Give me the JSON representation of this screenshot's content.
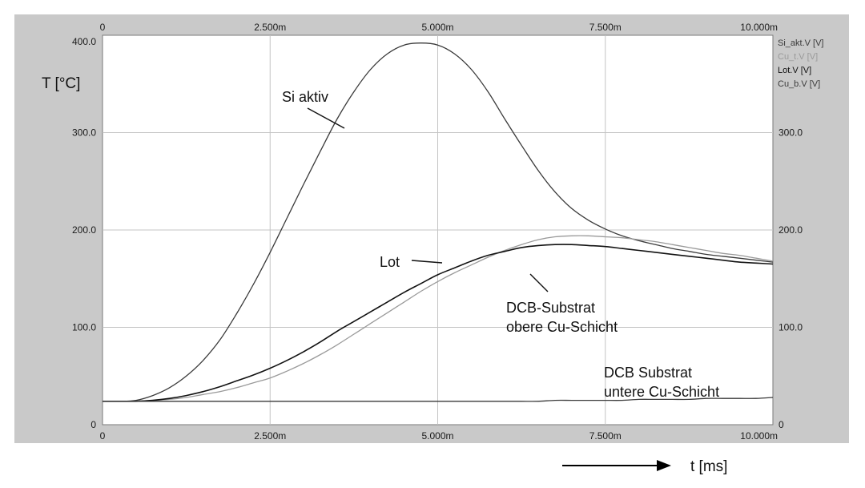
{
  "chart_data": {
    "type": "line",
    "ylabel": "T [°C]",
    "xlabel": "t [ms]",
    "xlim": [
      0,
      10
    ],
    "ylim": [
      0,
      400
    ],
    "grid": true,
    "legend_position": "right",
    "x_tick_labels": [
      "0",
      "2.500m",
      "5.000m",
      "7.500m",
      "10.000m"
    ],
    "x_ticks": [
      0,
      2.5,
      5,
      7.5,
      10
    ],
    "y_tick_labels_left": [
      "0",
      "100.0",
      "200.0",
      "300.0",
      "400.0"
    ],
    "y_tick_labels_right": [
      "0",
      "100.0",
      "200.0",
      "300.0"
    ],
    "y_ticks_left": [
      0,
      100,
      200,
      300,
      400
    ],
    "y_ticks_right": [
      0,
      100,
      200,
      300
    ],
    "legend": [
      "Si_akt.V [V]",
      "Cu_t.V [V]",
      "Lot.V [V]",
      "Cu_b.V [V]"
    ],
    "x": [
      0,
      0.25,
      0.5,
      0.75,
      1,
      1.25,
      1.5,
      1.75,
      2,
      2.25,
      2.5,
      2.75,
      3,
      3.25,
      3.5,
      3.75,
      4,
      4.25,
      4.5,
      4.75,
      5,
      5.25,
      5.5,
      5.75,
      6,
      6.25,
      6.5,
      6.75,
      7,
      7.25,
      7.5,
      7.75,
      8,
      8.25,
      8.5,
      8.75,
      9,
      9.25,
      9.5,
      9.75,
      10
    ],
    "series": [
      {
        "name": "Si_akt.V [V]",
        "color": "#3a3a3a",
        "values": [
          24,
          24,
          25,
          30,
          38,
          50,
          66,
          87,
          114,
          144,
          177,
          212,
          247,
          281,
          314,
          342,
          365,
          381,
          390,
          392,
          390,
          381,
          365,
          342,
          314,
          287,
          261,
          239,
          222,
          210,
          201,
          194,
          189,
          185,
          181,
          178,
          175,
          173,
          171,
          169,
          167
        ]
      },
      {
        "name": "Cu_t.V [V]",
        "color": "#9a9a9a",
        "values": [
          24,
          24,
          24,
          25,
          26,
          28,
          31,
          34,
          38,
          43,
          48,
          55,
          63,
          72,
          82,
          93,
          104,
          115,
          126,
          137,
          147,
          156,
          164,
          172,
          179,
          185,
          190,
          193,
          194,
          194,
          193,
          192,
          190,
          188,
          185,
          182,
          179,
          176,
          174,
          171,
          168
        ]
      },
      {
        "name": "Lot.V [V]",
        "color": "#111111",
        "values": [
          24,
          24,
          24,
          25,
          27,
          30,
          34,
          39,
          45,
          51,
          58,
          66,
          75,
          85,
          96,
          106,
          116,
          126,
          136,
          145,
          154,
          161,
          168,
          174,
          178,
          182,
          184,
          185,
          185,
          184,
          183,
          181,
          179,
          177,
          175,
          173,
          171,
          169,
          167,
          166,
          165
        ]
      },
      {
        "name": "Cu_b.V [V]",
        "color": "#3a3a3a",
        "values": [
          24,
          24,
          24,
          24,
          24,
          24,
          24,
          24,
          24,
          24,
          24,
          24,
          24,
          24,
          24,
          24,
          24,
          24,
          24,
          24,
          24,
          24,
          24,
          24,
          24,
          24,
          24,
          25,
          25,
          25,
          25,
          25,
          26,
          26,
          26,
          26,
          27,
          27,
          27,
          27,
          28
        ]
      }
    ],
    "annotations": [
      {
        "id": "si",
        "lines": [
          "Si aktiv"
        ]
      },
      {
        "id": "lot",
        "lines": [
          "Lot"
        ]
      },
      {
        "id": "dcb-top",
        "lines": [
          "DCB-Substrat",
          "obere Cu-Schicht"
        ]
      },
      {
        "id": "dcb-bottom",
        "lines": [
          "DCB Substrat",
          "untere Cu-Schicht"
        ]
      }
    ]
  }
}
